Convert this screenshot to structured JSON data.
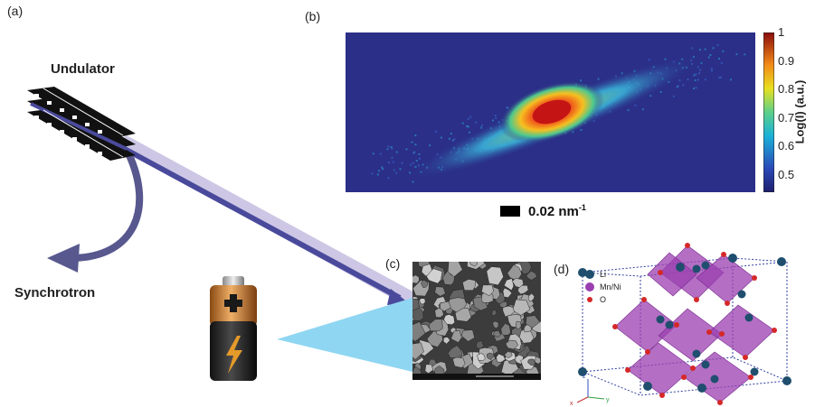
{
  "panels": {
    "a": "(a)",
    "b": "(b)",
    "c": "(c)",
    "d": "(d)"
  },
  "labels": {
    "undulator": "Undulator",
    "synchrotron": "Synchrotron"
  },
  "diffraction": {
    "colorbar_title": "Log(I) (a.u.)",
    "colorbar_ticks": [
      "1",
      "0.9",
      "0.8",
      "0.7",
      "0.6",
      "0.5"
    ],
    "colorbar_range": [
      0.44,
      1.0
    ],
    "scalebar_value": "0.02 nm",
    "scalebar_exponent": "-1"
  },
  "crystal": {
    "legend": [
      {
        "label": "Li",
        "color": "#1f4e6e"
      },
      {
        "label": "Mn/Ni",
        "color": "#9b3fb0"
      },
      {
        "label": "O",
        "color": "#d62828"
      }
    ],
    "axes": [
      "z",
      "x",
      "y"
    ]
  },
  "colors": {
    "beam": "#4a4a9c",
    "beam_glow": "#c4bde0",
    "synchrotron_arrow": "#58588f",
    "light_cone": "#8fd6f2",
    "diffraction_bg": "#2b2f88"
  }
}
